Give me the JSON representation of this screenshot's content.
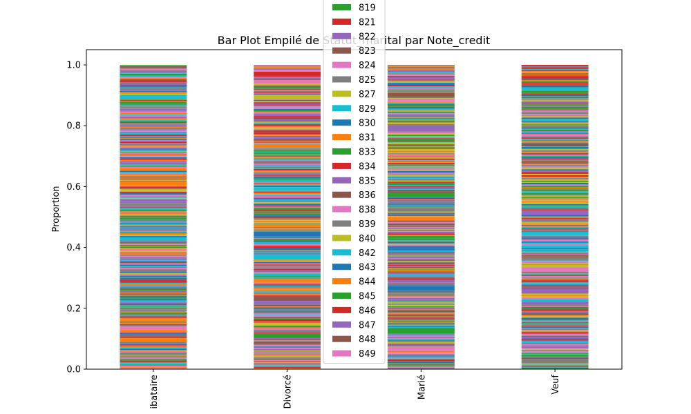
{
  "chart_data": {
    "type": "bar",
    "stacked": true,
    "title": "Bar Plot Empilé de Statut_marital par Note_credit",
    "xlabel": "",
    "ylabel": "Proportion",
    "categories": [
      "Célibataire",
      "Divorcé",
      "Marié",
      "Veuf"
    ],
    "visible_category_labels": [
      "ibataire",
      "Divorcé",
      "Marié",
      "Veuf"
    ],
    "ylim": [
      0,
      1.05
    ],
    "yticks": [
      "0.0",
      "0.2",
      "0.4",
      "0.6",
      "0.8",
      "1.0"
    ],
    "grid": false,
    "legend": {
      "placement": "top-center",
      "entries": [
        "819",
        "821",
        "822",
        "823",
        "824",
        "825",
        "827",
        "829",
        "830",
        "831",
        "833",
        "834",
        "835",
        "836",
        "838",
        "839",
        "840",
        "842",
        "843",
        "844",
        "845",
        "846",
        "847",
        "848",
        "849"
      ]
    },
    "color_cycle": [
      "#ff7f0e",
      "#2ca02c",
      "#d62728",
      "#9467bd",
      "#8c564b",
      "#e377c2",
      "#7f7f7f",
      "#bcbd22",
      "#17becf",
      "#1f77b4"
    ],
    "legend_color_offset": 1,
    "segments_per_bar": 300
  }
}
